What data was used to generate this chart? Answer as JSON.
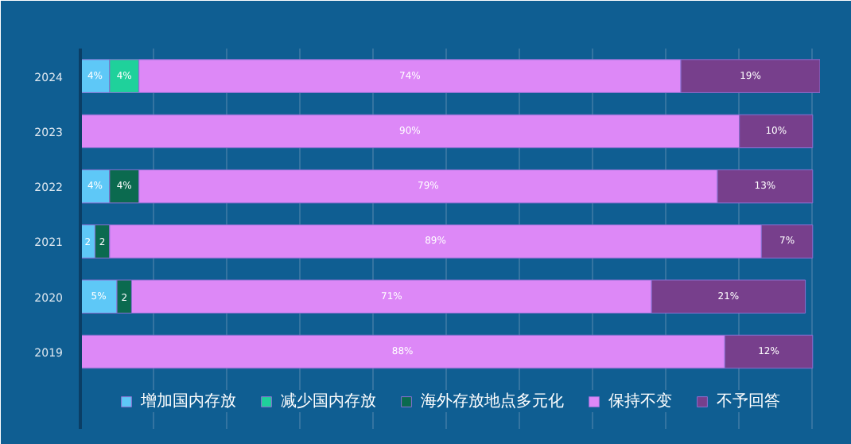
{
  "chart_data": {
    "type": "bar",
    "orientation": "horizontal",
    "stacked": true,
    "categories": [
      "2024",
      "2023",
      "2022",
      "2021",
      "2020",
      "2019"
    ],
    "series": [
      {
        "name": "增加国内存放",
        "color": "#5ec8f7",
        "values": [
          4,
          null,
          4,
          2,
          5,
          null
        ],
        "value_labels": [
          "4%",
          null,
          "4%",
          "2",
          "5%",
          null
        ]
      },
      {
        "name": "减少国内存放",
        "color": "#1fd19b",
        "values": [
          4,
          null,
          null,
          null,
          null,
          null
        ],
        "value_labels": [
          "4%",
          null,
          null,
          null,
          null,
          null
        ]
      },
      {
        "name": "海外存放地点多元化",
        "color": "#0b6a4f",
        "values": [
          null,
          null,
          4,
          2,
          2,
          null
        ],
        "value_labels": [
          null,
          null,
          "4%",
          "2",
          "2",
          null
        ]
      },
      {
        "name": "保持不变",
        "color": "#dd88f7",
        "values": [
          74,
          90,
          79,
          89,
          71,
          88
        ],
        "value_labels": [
          "74%",
          "90%",
          "79%",
          "89%",
          "71%",
          "88%"
        ]
      },
      {
        "name": "不予回答",
        "color": "#773f8c",
        "values": [
          19,
          10,
          13,
          7,
          21,
          12
        ],
        "value_labels": [
          "19%",
          "10%",
          "13%",
          "7%",
          "21%",
          "12%"
        ]
      }
    ],
    "xlim": [
      0,
      101
    ],
    "xticks": [
      {
        "value": 0,
        "label": null
      },
      {
        "value": 10,
        "label": null
      },
      {
        "value": 20,
        "label": null
      },
      {
        "value": 30,
        "label": null
      },
      {
        "value": 40,
        "label": null
      },
      {
        "value": 50,
        "label": null
      },
      {
        "value": 60,
        "label": null
      },
      {
        "value": 70,
        "label": null
      },
      {
        "value": 80,
        "label": null
      },
      {
        "value": 90,
        "label": null
      },
      {
        "value": 100,
        "label": null
      }
    ],
    "tick_labels": "y",
    "grid": "x",
    "legend": "bottom"
  }
}
